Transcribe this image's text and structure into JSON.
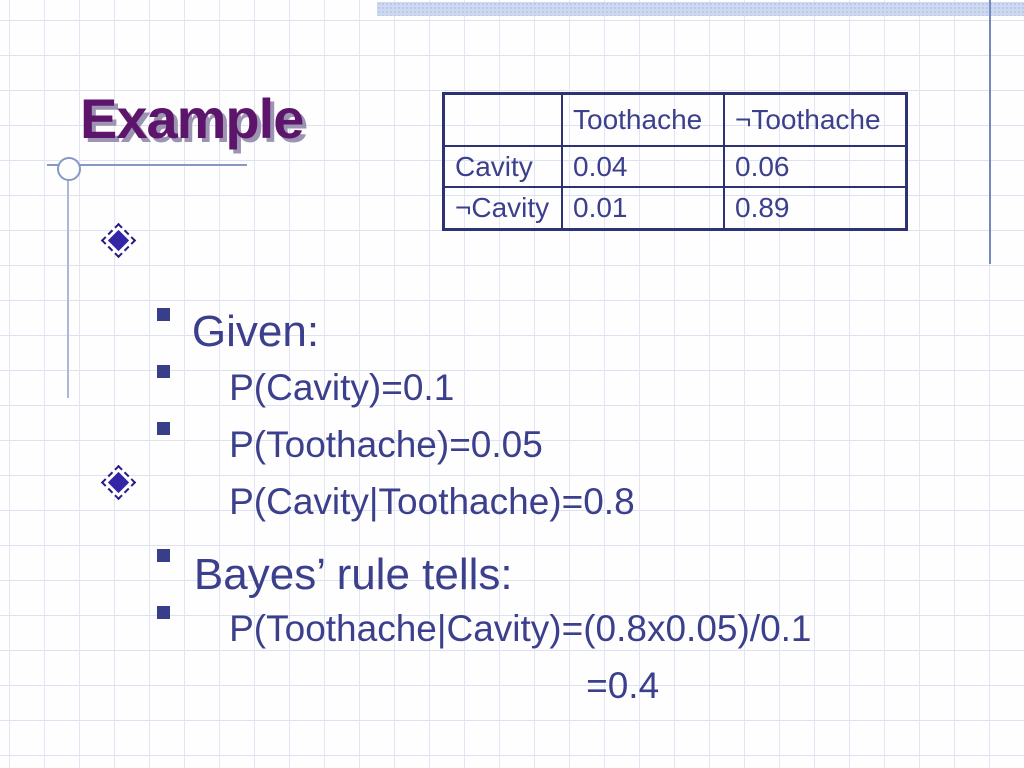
{
  "slide": {
    "title": "Example",
    "table": {
      "col_headers": [
        "",
        "Toothache",
        "¬Toothache"
      ],
      "rows": [
        {
          "label": "Cavity",
          "values": [
            "0.04",
            "0.06"
          ]
        },
        {
          "label": "¬Cavity",
          "values": [
            "0.01",
            "0.89"
          ]
        }
      ]
    },
    "bullets": [
      {
        "level": 1,
        "text": "Given:"
      },
      {
        "level": 2,
        "text": "P(Cavity)=0.1"
      },
      {
        "level": 2,
        "text": "P(Toothache)=0.05"
      },
      {
        "level": 2,
        "text": "P(Cavity|Toothache)=0.8"
      },
      {
        "level": 1,
        "text": "Bayes’ rule tells:"
      },
      {
        "level": 2,
        "text": "P(Toothache|Cavity)=(0.8x0.05)/0.1"
      },
      {
        "level": 2,
        "text": "=0.4"
      }
    ],
    "colors": {
      "title": "#5c156b",
      "body_text": "#3b3f8c",
      "table_border": "#2e3273",
      "grid_line": "#dde1f1",
      "top_band": "#cdd9ef",
      "accent_line": "#7489bd",
      "diamond_bullet": "#3325a5",
      "square_bullet": "#383e8a"
    }
  }
}
